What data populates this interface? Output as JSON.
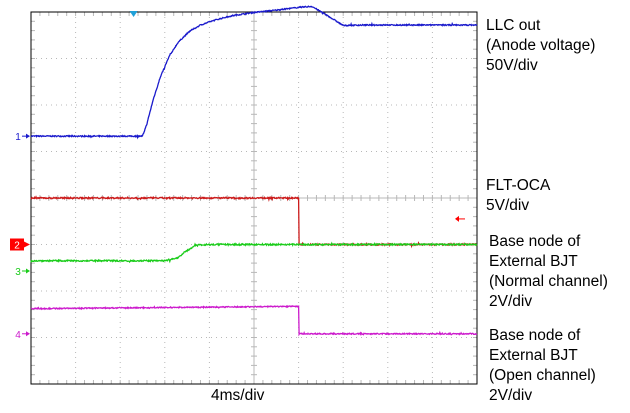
{
  "chart_data": {
    "type": "line",
    "title": "",
    "timebase": "4ms/div",
    "grid": true,
    "grid_divisions": {
      "x": 10,
      "y": 8
    },
    "x_unit": "div",
    "xlim": [
      0,
      10
    ],
    "trigger_position_div": 2.3,
    "series": [
      {
        "name": "LLC out (Anode voltage)",
        "channel": "1",
        "scale": "50V/div",
        "color": "#1a1acc",
        "noise": 0.012,
        "x": [
          0,
          2.5,
          2.6,
          2.75,
          2.9,
          3.1,
          3.3,
          3.55,
          3.8,
          4.1,
          4.5,
          5.0,
          5.5,
          6.0,
          6.3,
          6.6,
          7.0,
          7.5,
          8.0,
          9.0,
          10
        ],
        "y": [
          5.33,
          5.33,
          5.6,
          6.15,
          6.6,
          7.05,
          7.35,
          7.58,
          7.72,
          7.82,
          7.92,
          7.99,
          8.04,
          8.1,
          8.12,
          7.95,
          7.71,
          7.72,
          7.72,
          7.72,
          7.72
        ]
      },
      {
        "name": "FLT-OCA",
        "channel": "",
        "scale": "5V/div",
        "color": "#cc1a1a",
        "noise": 0.015,
        "x": [
          0,
          6.0,
          6.01,
          10
        ],
        "y": [
          4.0,
          4.0,
          3.0,
          3.0
        ]
      },
      {
        "name": "Base node of External BJT (Normal channel)",
        "channel": "2",
        "scale": "2V/div",
        "color": "#1acc1a",
        "noise": 0.015,
        "x": [
          0,
          3.0,
          3.3,
          3.5,
          3.7,
          4.0,
          10
        ],
        "y": [
          2.65,
          2.65,
          2.72,
          2.87,
          2.99,
          3.0,
          3.0
        ]
      },
      {
        "name": "Base node of External BJT (Open channel)",
        "channel": "4",
        "scale": "2V/div",
        "color": "#cc1acc",
        "noise": 0.012,
        "x": [
          0,
          6.0,
          6.01,
          10
        ],
        "y": [
          1.62,
          1.67,
          1.08,
          1.08
        ]
      }
    ],
    "markers": [
      {
        "label": "1",
        "color": "#1a1acc",
        "y": 5.33,
        "style": "arrow"
      },
      {
        "label": "2",
        "color": "#ff0000",
        "y": 3.0,
        "style": "box"
      },
      {
        "label": "3",
        "color": "#1acc1a",
        "y": 2.43,
        "style": "arrow"
      },
      {
        "label": "4",
        "color": "#cc1acc",
        "y": 1.08,
        "style": "arrow"
      }
    ]
  },
  "labels": {
    "llc_1": "LLC out",
    "llc_2": "(Anode voltage)",
    "llc_3": "50V/div",
    "flt_1": "FLT-OCA",
    "flt_2": "5V/div",
    "normal_1": "Base node of",
    "normal_2": "External BJT",
    "normal_3": "(Normal channel)",
    "normal_4": "2V/div",
    "open_1": "Base node of",
    "open_2": "External BJT",
    "open_3": "(Open channel)",
    "open_4": "2V/div",
    "timebase": "4ms/div"
  },
  "colors": {
    "grid": "#b8b8b8",
    "frame": "#000000",
    "trigger_marker": "#1ea0d8",
    "ref_arrow": "#ff0000"
  }
}
